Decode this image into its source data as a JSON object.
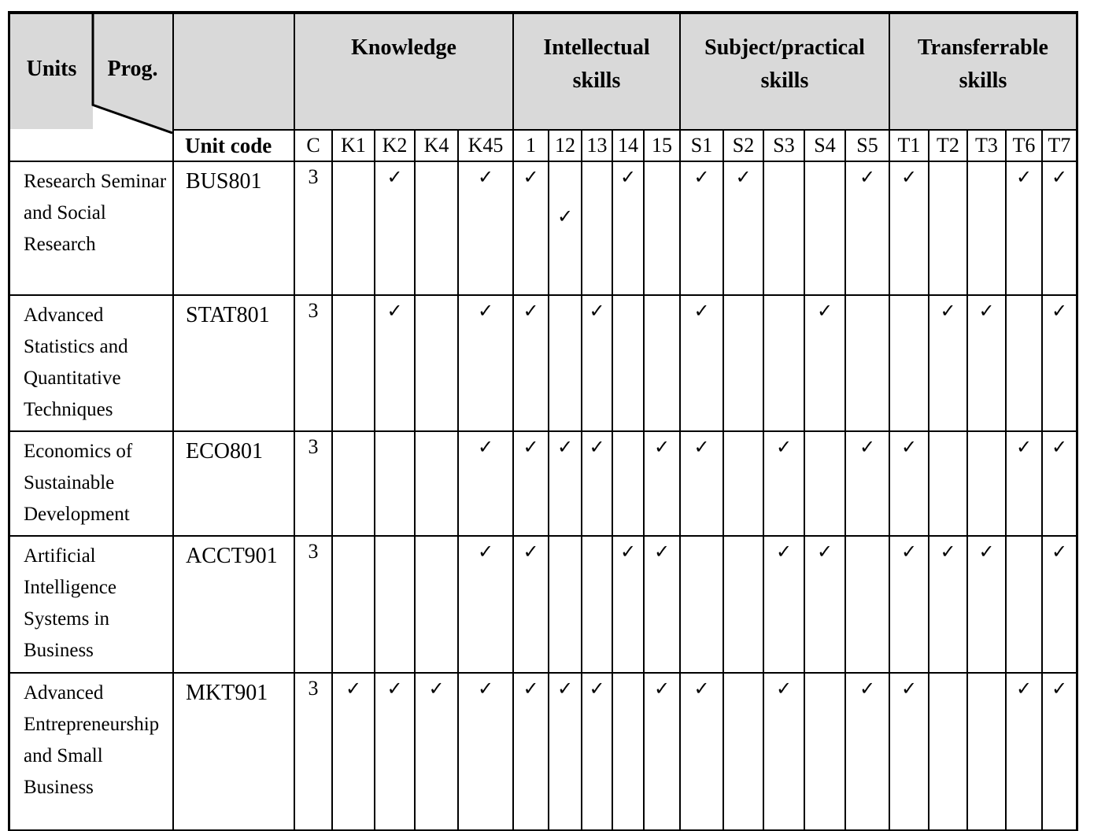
{
  "table": {
    "corner": {
      "units": "Units",
      "prog": "Prog.",
      "unit_code": "Unit code"
    },
    "column_groups": [
      {
        "label": "Knowledge",
        "columns": [
          "C",
          "K1",
          "K2",
          "K4",
          "K45"
        ]
      },
      {
        "label": "Intellectual skills",
        "columns": [
          "1",
          "12",
          "13",
          "14",
          "15"
        ]
      },
      {
        "label": "Subject/practical skills",
        "columns": [
          "S1",
          "S2",
          "S3",
          "S4",
          "S5"
        ]
      },
      {
        "label": "Transferrable skills",
        "columns": [
          "T1",
          "T2",
          "T3",
          "T6",
          "T7"
        ]
      }
    ],
    "check_glyph": "✓",
    "rows": [
      {
        "unit": "Research Seminar and Social Research",
        "code": "BUS801",
        "credits": "3",
        "checks": [
          "K2",
          "K45",
          "1",
          "12",
          "14",
          "S1",
          "S2",
          "S5",
          "T1",
          "T6",
          "T7"
        ],
        "lowered_checks": [
          "12"
        ]
      },
      {
        "unit": "Advanced Statistics and Quantitative Techniques",
        "code": "STAT801",
        "credits": "3",
        "checks": [
          "K2",
          "K45",
          "1",
          "13",
          "S1",
          "S4",
          "T2",
          "T3",
          "T7"
        ],
        "lowered_checks": []
      },
      {
        "unit": "Economics of Sustainable Development",
        "code": "ECO801",
        "credits": "3",
        "checks": [
          "K45",
          "1",
          "12",
          "13",
          "15",
          "S1",
          "S3",
          "S5",
          "T1",
          "T6",
          "T7"
        ],
        "lowered_checks": []
      },
      {
        "unit": "Artificial Intelligence Systems in Business",
        "code": "ACCT901",
        "credits": "3",
        "checks": [
          "K45",
          "1",
          "14",
          "15",
          "S3",
          "S4",
          "T1",
          "T2",
          "T3",
          "T7"
        ],
        "lowered_checks": []
      },
      {
        "unit": "Advanced Entrepreneurship and Small Business",
        "code": "MKT901",
        "credits": "3",
        "checks": [
          "K1",
          "K2",
          "K4",
          "K45",
          "1",
          "12",
          "13",
          "15",
          "S1",
          "S3",
          "S5",
          "T1",
          "T6",
          "T7"
        ],
        "lowered_checks": []
      }
    ],
    "colors": {
      "header_bg": "#d9d9d9",
      "border": "#000000",
      "background": "#ffffff"
    }
  }
}
